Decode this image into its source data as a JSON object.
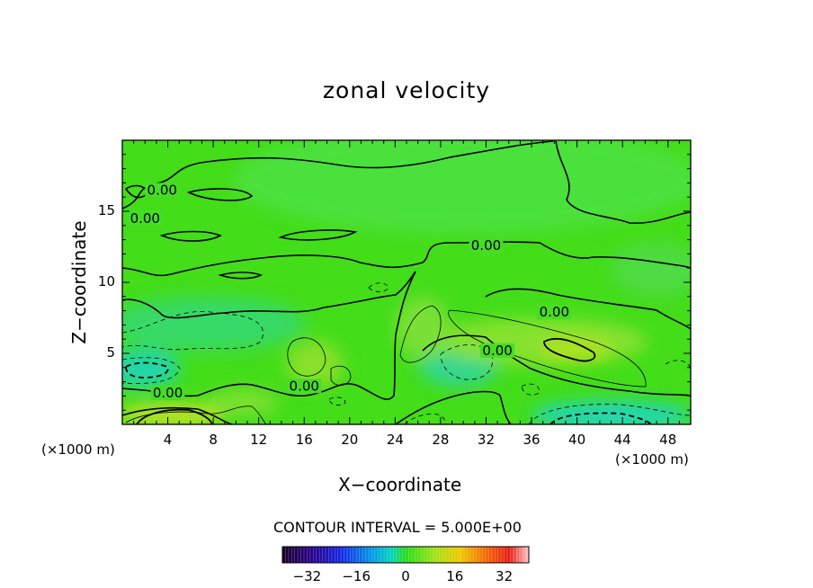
{
  "chart_data": {
    "type": "heatmap",
    "title": "zonal velocity",
    "xlabel": "X−coordinate",
    "ylabel": "Z−coordinate",
    "x_unit_left": "(×1000 m)",
    "x_unit_right": "(×1000 m)",
    "xlim": [
      0,
      50
    ],
    "ylim": [
      0,
      20
    ],
    "x_ticks": [
      4,
      8,
      12,
      16,
      20,
      24,
      28,
      32,
      36,
      40,
      44,
      48
    ],
    "x_tick_labels": [
      "4",
      "8",
      "12",
      "16",
      "20",
      "24",
      "28",
      "32",
      "36",
      "40",
      "44",
      "48"
    ],
    "y_ticks": [
      5,
      10,
      15
    ],
    "y_tick_labels": [
      "5",
      "10",
      "15"
    ],
    "contour_interval_text": "CONTOUR INTERVAL = 5.000E+00",
    "contour_interval": 5.0,
    "contour_labels": [
      {
        "text": "0.00",
        "x": 3.5,
        "z": 16.5
      },
      {
        "text": "0.00",
        "x": 2.0,
        "z": 14.5
      },
      {
        "text": "0.00",
        "x": 32.0,
        "z": 12.6
      },
      {
        "text": "0.00",
        "x": 38.0,
        "z": 7.9
      },
      {
        "text": "0.00",
        "x": 33.0,
        "z": 5.2
      },
      {
        "text": "0.00",
        "x": 16.0,
        "z": 2.7
      },
      {
        "text": "0.00",
        "x": 4.0,
        "z": 2.2
      }
    ],
    "features": [
      {
        "kind": "positive-max",
        "x": 39.5,
        "z": 5.5,
        "value": 7
      },
      {
        "kind": "positive-max",
        "x": 4.5,
        "z": 0.7,
        "value": 8
      },
      {
        "kind": "negative-min",
        "x": 2.0,
        "z": 3.8,
        "value": -7
      },
      {
        "kind": "negative-min",
        "x": 44.0,
        "z": 0.8,
        "value": -6
      },
      {
        "kind": "negative-min",
        "x": 30.0,
        "z": 4.2,
        "value": -4
      }
    ],
    "colorbar": {
      "range": [
        -40,
        40
      ],
      "ticks": [
        -32,
        -16,
        0,
        16,
        32
      ],
      "tick_labels": [
        "−32",
        "−16",
        "0",
        "16",
        "32"
      ]
    },
    "colors": {
      "background": "#43dd18",
      "frame": "#000000"
    }
  }
}
